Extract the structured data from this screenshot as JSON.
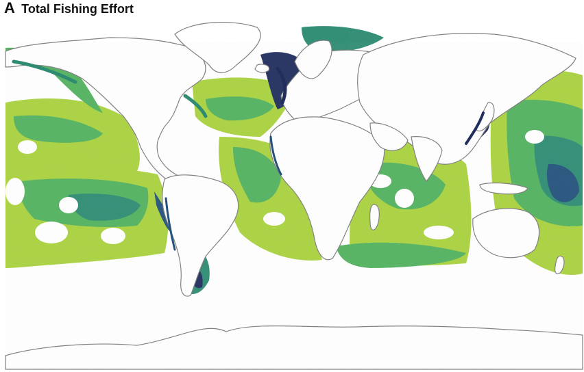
{
  "figure": {
    "panel_letter": "A",
    "title": "Total Fishing Effort"
  },
  "colors": {
    "background": "#ffffff",
    "coastline": "#808080",
    "effort_low": "#e6e61a",
    "effort_mid_low": "#a8d13b",
    "effort_mid": "#4fb05c",
    "effort_mid_high": "#2a8a70",
    "effort_high": "#1f4f7a",
    "effort_max": "#1c2a5a"
  },
  "map": {
    "projection": "equirectangular",
    "variable": "total fishing effort"
  }
}
